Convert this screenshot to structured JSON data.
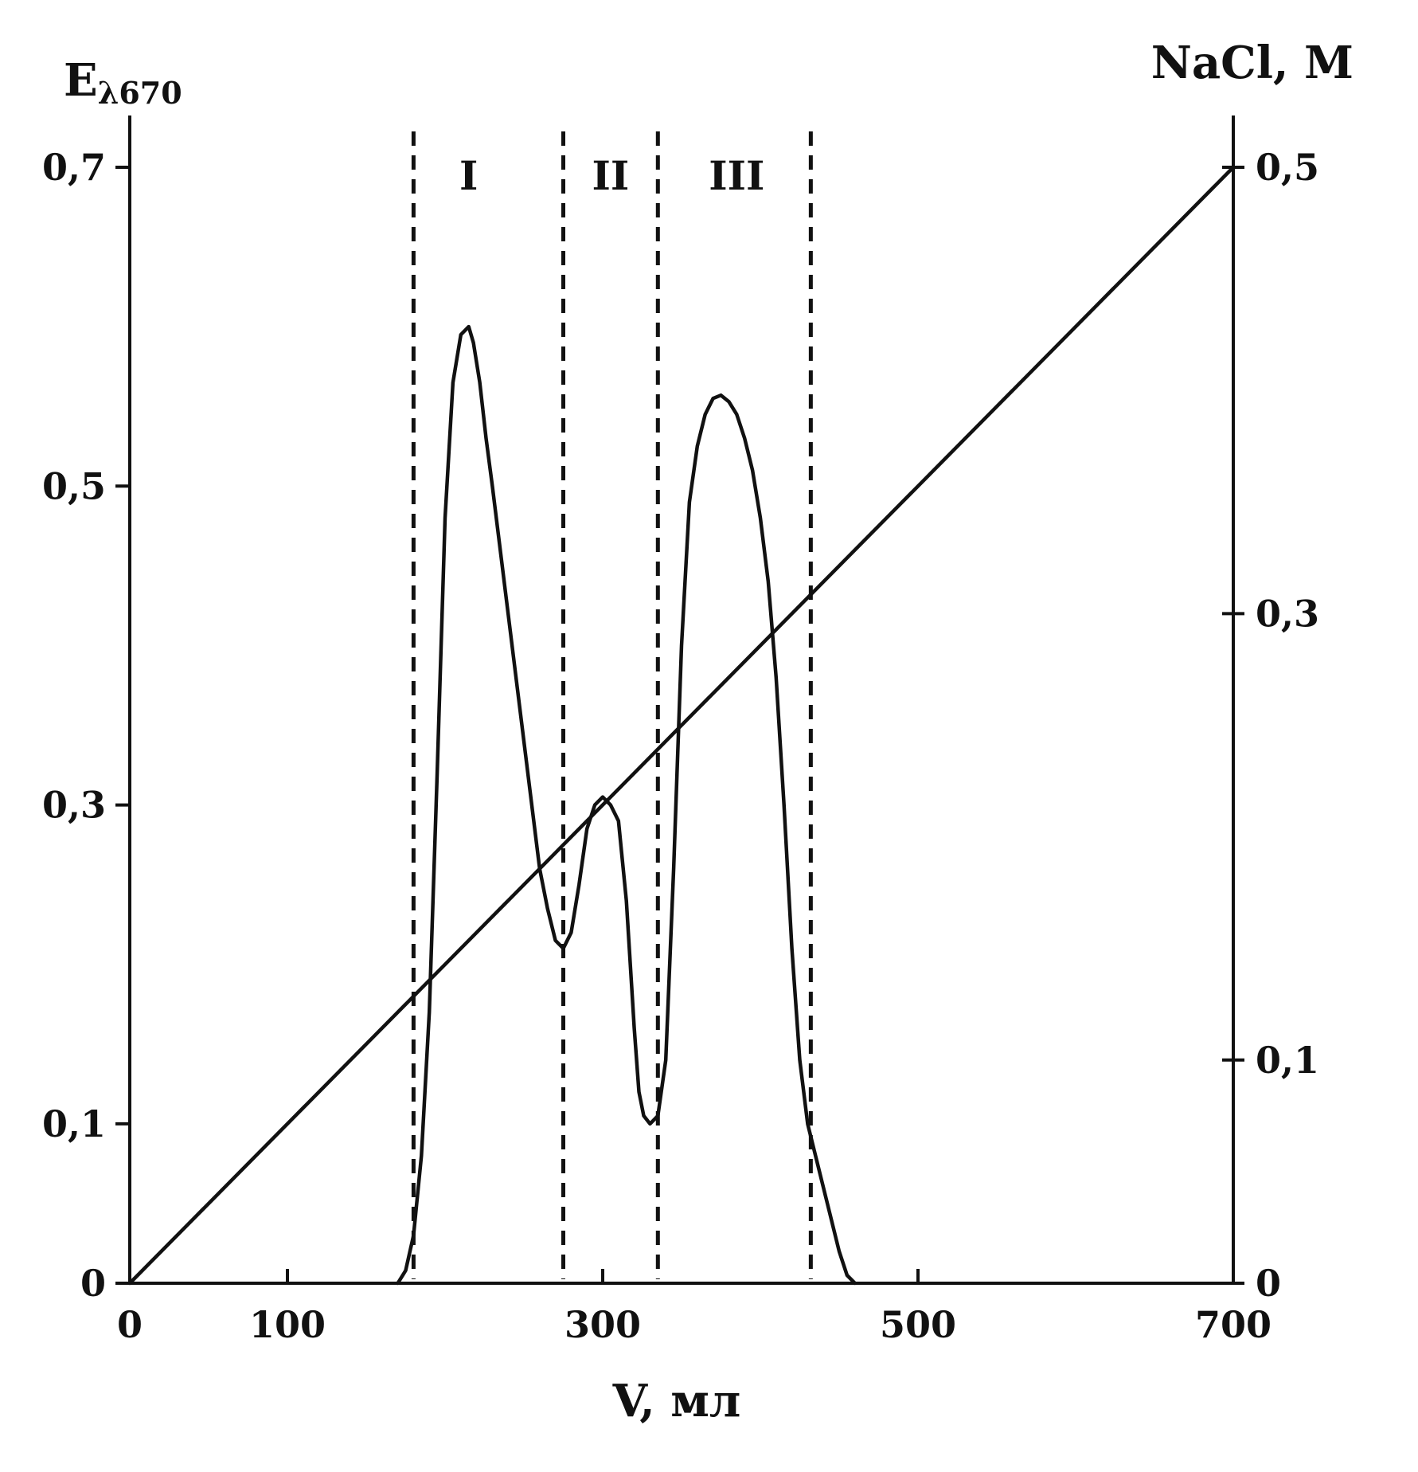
{
  "chart_data": {
    "type": "line",
    "x_axis": {
      "label_main": "V, мл",
      "range": [
        0,
        700
      ],
      "ticks": [
        0,
        100,
        300,
        500,
        700
      ],
      "tick_labels": [
        "0",
        "100",
        "300",
        "500",
        "700"
      ]
    },
    "y_axis_left": {
      "label_main": "E",
      "label_sub": "λ670",
      "range": [
        0,
        0.7
      ],
      "ticks": [
        0,
        0.1,
        0.3,
        0.5,
        0.7
      ],
      "tick_labels": [
        "0",
        "0,1",
        "0,3",
        "0,5",
        "0,7"
      ]
    },
    "y_axis_right": {
      "label_main": "NaCl, M",
      "range": [
        0,
        0.5
      ],
      "ticks": [
        0,
        0.1,
        0.3,
        0.5
      ],
      "tick_labels": [
        "0",
        "0,1",
        "0,3",
        "0,5"
      ]
    },
    "series": [
      {
        "axis": "left",
        "x": [
          170,
          175,
          180,
          185,
          190,
          195,
          200,
          205,
          210,
          215,
          218,
          222,
          226,
          230,
          235,
          240,
          245,
          250,
          255,
          260,
          265,
          270,
          275,
          280,
          285,
          290,
          295,
          300,
          305,
          310,
          315,
          320,
          323,
          326,
          330,
          335,
          340,
          345,
          350,
          355,
          360,
          365,
          370,
          375,
          380,
          385,
          390,
          395,
          400,
          405,
          410,
          415,
          420,
          425,
          430,
          435,
          440,
          445,
          450,
          455,
          460
        ],
        "y": [
          0.0,
          0.008,
          0.03,
          0.08,
          0.17,
          0.32,
          0.48,
          0.565,
          0.595,
          0.6,
          0.59,
          0.565,
          0.53,
          0.5,
          0.46,
          0.42,
          0.38,
          0.34,
          0.3,
          0.26,
          0.235,
          0.215,
          0.21,
          0.22,
          0.25,
          0.285,
          0.3,
          0.305,
          0.3,
          0.29,
          0.24,
          0.16,
          0.12,
          0.105,
          0.1,
          0.105,
          0.14,
          0.26,
          0.4,
          0.49,
          0.525,
          0.545,
          0.555,
          0.557,
          0.553,
          0.545,
          0.53,
          0.51,
          0.48,
          0.44,
          0.38,
          0.3,
          0.21,
          0.14,
          0.1,
          0.08,
          0.06,
          0.04,
          0.02,
          0.005,
          0.0
        ]
      },
      {
        "axis": "right",
        "x": [
          0,
          700
        ],
        "y": [
          0.0,
          0.5
        ]
      }
    ],
    "fraction_boundaries": [
      180,
      275,
      335,
      432
    ],
    "fraction_labels": [
      {
        "label": "I",
        "x": 215
      },
      {
        "label": "II",
        "x": 305
      },
      {
        "label": "III",
        "x": 385
      }
    ],
    "grid": false,
    "legend": "none"
  }
}
